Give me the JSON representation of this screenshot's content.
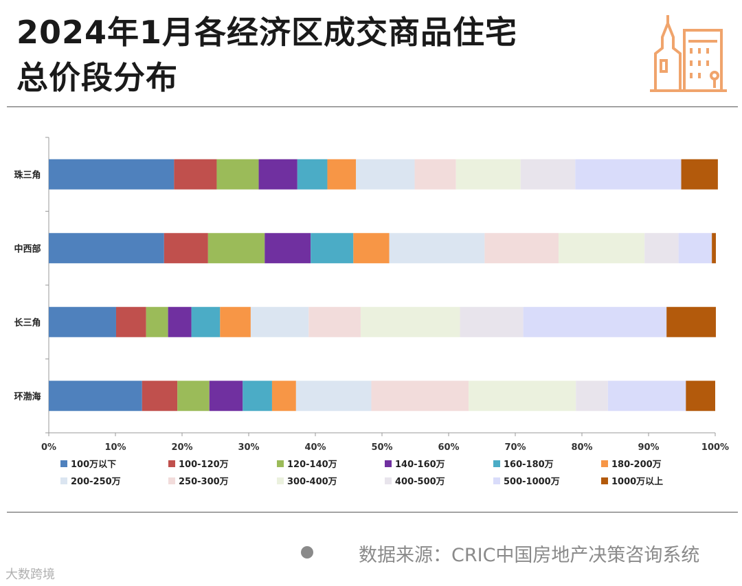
{
  "title_line1": "2024年1月各经济区成交商品住宅",
  "title_line2": "总价段分布",
  "source": "数据来源：CRIC中国房地产决策咨询系统",
  "watermark": "大数跨境",
  "chart_data": {
    "type": "bar",
    "orientation": "horizontal",
    "stacked": true,
    "title": "",
    "xlabel": "",
    "ylabel": "",
    "xlim": [
      0,
      100
    ],
    "x_ticks": [
      "0%",
      "10%",
      "20%",
      "30%",
      "40%",
      "50%",
      "60%",
      "70%",
      "80%",
      "90%",
      "100%"
    ],
    "categories": [
      "珠三角",
      "中西部",
      "长三角",
      "环渤海"
    ],
    "legend_position": "bottom",
    "series": [
      {
        "name": "100万以下",
        "color": "#4f81bd",
        "values": [
          18.8,
          17.3,
          10.1,
          14.0
        ]
      },
      {
        "name": "100-120万",
        "color": "#c0504d",
        "values": [
          6.4,
          6.6,
          4.5,
          5.3
        ]
      },
      {
        "name": "120-140万",
        "color": "#9bbb59",
        "values": [
          6.3,
          8.5,
          3.3,
          4.8
        ]
      },
      {
        "name": "140-160万",
        "color": "#7030a0",
        "values": [
          5.8,
          6.9,
          3.5,
          5.0
        ]
      },
      {
        "name": "160-180万",
        "color": "#4bacc6",
        "values": [
          4.5,
          6.4,
          4.3,
          4.4
        ]
      },
      {
        "name": "180-200万",
        "color": "#f79646",
        "values": [
          4.3,
          5.4,
          4.6,
          3.6
        ]
      },
      {
        "name": "200-250万",
        "color": "#dbe5f1",
        "values": [
          8.8,
          14.3,
          8.7,
          11.3
        ]
      },
      {
        "name": "250-300万",
        "color": "#f2dcdb",
        "values": [
          6.2,
          11.1,
          7.8,
          14.6
        ]
      },
      {
        "name": "300-400万",
        "color": "#ebf1de",
        "values": [
          9.7,
          12.9,
          14.9,
          16.1
        ]
      },
      {
        "name": "400-500万",
        "color": "#e8e4ec",
        "values": [
          8.2,
          5.1,
          9.5,
          4.8
        ]
      },
      {
        "name": "500-1000万",
        "color": "#d9dcfa",
        "values": [
          15.9,
          5.0,
          21.5,
          11.7
        ]
      },
      {
        "name": "1000万以上",
        "color": "#b35a0c",
        "values": [
          5.5,
          0.6,
          7.4,
          4.4
        ]
      }
    ]
  }
}
